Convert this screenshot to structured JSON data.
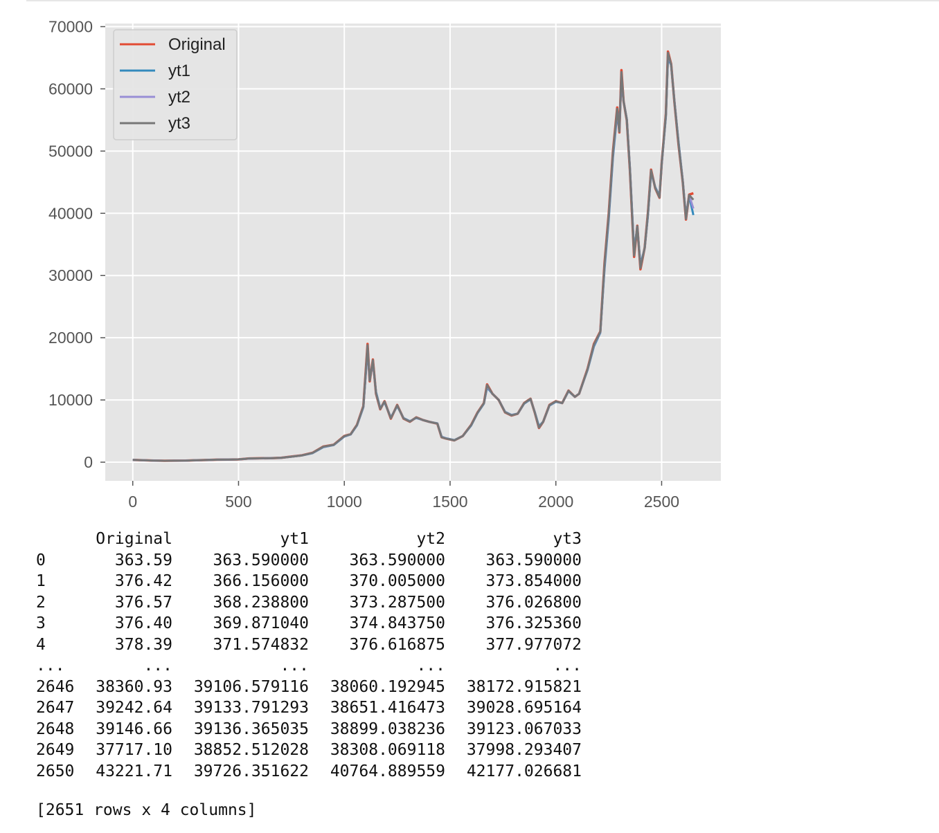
{
  "chart_data": {
    "type": "line",
    "title": "",
    "xlabel": "",
    "ylabel": "",
    "xlim": [
      -130,
      2780
    ],
    "ylim": [
      -3000,
      70500
    ],
    "xticks": [
      0,
      500,
      1000,
      1500,
      2000,
      2500
    ],
    "yticks": [
      0,
      10000,
      20000,
      30000,
      40000,
      50000,
      60000,
      70000
    ],
    "grid": true,
    "legend_position": "top-left",
    "x": [
      0,
      50,
      100,
      150,
      200,
      250,
      300,
      350,
      400,
      450,
      500,
      550,
      600,
      650,
      700,
      750,
      800,
      850,
      900,
      950,
      1000,
      1030,
      1060,
      1090,
      1110,
      1120,
      1135,
      1150,
      1170,
      1190,
      1220,
      1250,
      1280,
      1310,
      1340,
      1370,
      1400,
      1440,
      1460,
      1480,
      1520,
      1560,
      1600,
      1630,
      1660,
      1675,
      1700,
      1730,
      1760,
      1790,
      1820,
      1850,
      1880,
      1900,
      1920,
      1940,
      1970,
      2000,
      2030,
      2060,
      2090,
      2110,
      2150,
      2180,
      2210,
      2230,
      2250,
      2270,
      2290,
      2300,
      2310,
      2320,
      2335,
      2350,
      2370,
      2385,
      2400,
      2420,
      2435,
      2450,
      2470,
      2490,
      2500,
      2520,
      2530,
      2545,
      2560,
      2580,
      2600,
      2615,
      2630,
      2650
    ],
    "series": [
      {
        "name": "Original",
        "color": "#e24a33",
        "values": [
          364,
          300,
          250,
          220,
          240,
          250,
          300,
          350,
          400,
          420,
          450,
          600,
          620,
          650,
          700,
          900,
          1100,
          1500,
          2500,
          2800,
          4200,
          4500,
          6000,
          9000,
          19000,
          13000,
          16500,
          11000,
          8500,
          9800,
          7000,
          9200,
          7000,
          6500,
          7200,
          6800,
          6500,
          6200,
          4000,
          3800,
          3500,
          4200,
          6000,
          8000,
          9500,
          12500,
          11000,
          10000,
          8000,
          7500,
          7800,
          9500,
          10200,
          8000,
          5500,
          6500,
          9200,
          9800,
          9500,
          11500,
          10500,
          11000,
          15000,
          19000,
          21000,
          32000,
          40000,
          50000,
          57000,
          53000,
          63000,
          58000,
          55000,
          47000,
          33000,
          38000,
          31000,
          34500,
          40000,
          47000,
          44000,
          42500,
          48000,
          56000,
          66000,
          64000,
          58000,
          51000,
          45000,
          39000,
          43000,
          43222
        ]
      },
      {
        "name": "yt1",
        "color": "#348abd",
        "values": [
          364,
          310,
          255,
          225,
          238,
          250,
          298,
          348,
          398,
          420,
          448,
          590,
          618,
          648,
          698,
          880,
          1080,
          1450,
          2400,
          2750,
          4100,
          4450,
          5900,
          8800,
          18000,
          13400,
          16000,
          11300,
          8700,
          9600,
          7200,
          9000,
          7100,
          6600,
          7100,
          6800,
          6500,
          6250,
          4100,
          3850,
          3550,
          4200,
          5900,
          7900,
          9400,
          12000,
          11000,
          10000,
          8100,
          7600,
          7800,
          9400,
          10100,
          8100,
          5800,
          6500,
          9100,
          9700,
          9500,
          11400,
          10500,
          11000,
          14800,
          18600,
          20800,
          31000,
          39000,
          49000,
          56000,
          53500,
          61500,
          58000,
          55200,
          47500,
          34000,
          37800,
          31800,
          34400,
          39500,
          46500,
          44200,
          42800,
          47800,
          55500,
          65000,
          63800,
          58200,
          51500,
          45200,
          39500,
          42800,
          39726
        ]
      },
      {
        "name": "yt2",
        "color": "#988ed5",
        "values": [
          364,
          305,
          252,
          222,
          239,
          250,
          299,
          349,
          399,
          420,
          449,
          595,
          619,
          649,
          699,
          890,
          1090,
          1480,
          2450,
          2780,
          4150,
          4480,
          5950,
          8900,
          18500,
          13200,
          16200,
          11100,
          8600,
          9700,
          7100,
          9100,
          7050,
          6550,
          7150,
          6800,
          6500,
          6220,
          4050,
          3830,
          3520,
          4200,
          5950,
          7950,
          9450,
          12200,
          11000,
          10000,
          8050,
          7550,
          7800,
          9450,
          10150,
          8050,
          5600,
          6500,
          9150,
          9750,
          9500,
          11450,
          10500,
          11000,
          14900,
          18800,
          20900,
          31500,
          39500,
          49500,
          56500,
          53200,
          62200,
          58000,
          55100,
          47200,
          33500,
          37900,
          31400,
          34450,
          39800,
          46800,
          44100,
          42600,
          47900,
          55800,
          65500,
          63900,
          58100,
          51200,
          45100,
          39200,
          42900,
          40765
        ]
      },
      {
        "name": "yt3",
        "color": "#777777",
        "values": [
          364,
          302,
          251,
          221,
          240,
          250,
          300,
          350,
          400,
          420,
          450,
          598,
          620,
          650,
          700,
          895,
          1095,
          1490,
          2480,
          2790,
          4180,
          4490,
          5980,
          8950,
          18800,
          13100,
          16400,
          11050,
          8550,
          9750,
          7050,
          9150,
          7020,
          6520,
          7180,
          6800,
          6500,
          6210,
          4020,
          3810,
          3510,
          4200,
          5980,
          7980,
          9480,
          12400,
          11000,
          10000,
          8020,
          7520,
          7800,
          9480,
          10180,
          8020,
          5550,
          6500,
          9180,
          9780,
          9500,
          11480,
          10500,
          11000,
          14950,
          18900,
          20950,
          31800,
          39800,
          49800,
          56800,
          53100,
          62700,
          58000,
          55050,
          47100,
          33200,
          37950,
          31200,
          34480,
          39900,
          46900,
          44050,
          42550,
          47950,
          55900,
          65800,
          63950,
          58050,
          51100,
          45050,
          39100,
          42950,
          42177
        ]
      }
    ]
  },
  "dataframe": {
    "columns": [
      "Original",
      "yt1",
      "yt2",
      "yt3"
    ],
    "head": [
      {
        "index": "0",
        "cells": [
          "363.59",
          "363.590000",
          "363.590000",
          "363.590000"
        ]
      },
      {
        "index": "1",
        "cells": [
          "376.42",
          "366.156000",
          "370.005000",
          "373.854000"
        ]
      },
      {
        "index": "2",
        "cells": [
          "376.57",
          "368.238800",
          "373.287500",
          "376.026800"
        ]
      },
      {
        "index": "3",
        "cells": [
          "376.40",
          "369.871040",
          "374.843750",
          "376.325360"
        ]
      },
      {
        "index": "4",
        "cells": [
          "378.39",
          "371.574832",
          "376.616875",
          "377.977072"
        ]
      }
    ],
    "ellipsis": "...",
    "tail": [
      {
        "index": "2646",
        "cells": [
          "38360.93",
          "39106.579116",
          "38060.192945",
          "38172.915821"
        ]
      },
      {
        "index": "2647",
        "cells": [
          "39242.64",
          "39133.791293",
          "38651.416473",
          "39028.695164"
        ]
      },
      {
        "index": "2648",
        "cells": [
          "39146.66",
          "39136.365035",
          "38899.038236",
          "39123.067033"
        ]
      },
      {
        "index": "2649",
        "cells": [
          "37717.10",
          "38852.512028",
          "38308.069118",
          "37998.293407"
        ]
      },
      {
        "index": "2650",
        "cells": [
          "43221.71",
          "39726.351622",
          "40764.889559",
          "42177.026681"
        ]
      }
    ],
    "summary": "[2651 rows x 4 columns]"
  }
}
